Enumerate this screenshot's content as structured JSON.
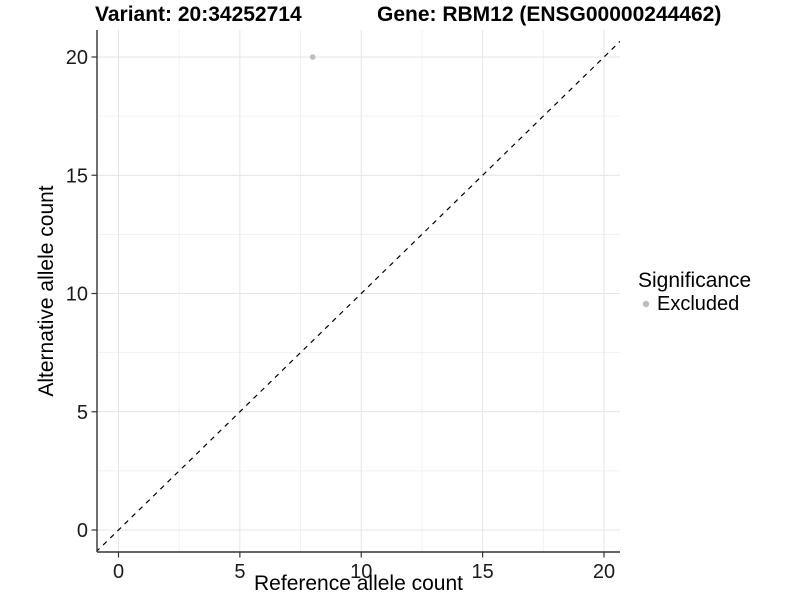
{
  "titles": {
    "variant": "Variant: 20:34252714",
    "gene": "Gene: RBM12 (ENSG00000244462)"
  },
  "chart_data": {
    "type": "scatter",
    "title": "Variant: 20:34252714    Gene: RBM12 (ENSG00000244462)",
    "xlabel": "Reference allele count",
    "ylabel": "Alternative allele count",
    "x_ticks": [
      0,
      5,
      10,
      15,
      20
    ],
    "y_ticks": [
      0,
      5,
      10,
      15,
      20
    ],
    "x_minor_ticks": [
      2.5,
      7.5,
      12.5,
      17.5
    ],
    "y_minor_ticks": [
      2.5,
      7.5,
      12.5,
      17.5
    ],
    "xlim": [
      -0.9,
      20.65
    ],
    "ylim": [
      -0.93,
      21.1
    ],
    "grid": true,
    "series": [
      {
        "name": "Excluded",
        "color": "#bdbdbd",
        "points": [
          [
            8,
            20
          ]
        ]
      }
    ],
    "reference_line": {
      "type": "identity y=x",
      "style": "dashed",
      "color": "#000000"
    },
    "legend": {
      "position": "right",
      "title": "Significance",
      "entries": [
        {
          "label": "Excluded",
          "color": "#bdbdbd"
        }
      ]
    },
    "colors": {
      "axis_line": "#333333",
      "tick_label": "#1a1a1a",
      "grid_major": "#e4e4e4",
      "grid_minor": "#f1f1f1"
    }
  }
}
